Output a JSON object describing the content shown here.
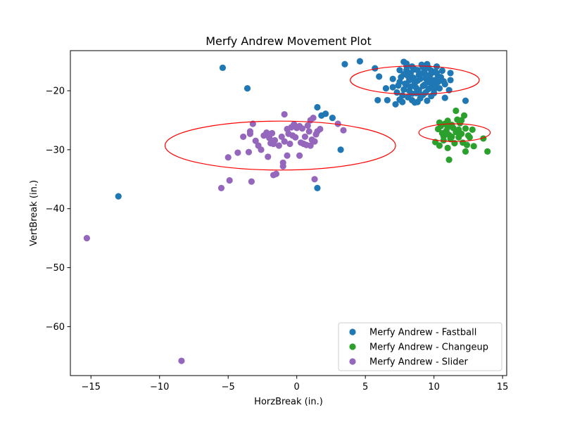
{
  "chart_data": {
    "type": "scatter",
    "title": "Merfy Andrew Movement Plot",
    "xlabel": "HorzBreak (in.)",
    "ylabel": "VertBreak (in.)",
    "xlim": [
      -16.5,
      15.3
    ],
    "ylim": [
      -68.3,
      -13.2
    ],
    "xticks": [
      -15,
      -10,
      -5,
      0,
      5,
      10,
      15
    ],
    "yticks": [
      -60,
      -50,
      -40,
      -30,
      -20
    ],
    "xtick_labels": [
      "−15",
      "−10",
      "−5",
      "0",
      "5",
      "10",
      "15"
    ],
    "ytick_labels": [
      "−60",
      "−50",
      "−40",
      "−30",
      "−20"
    ],
    "grid": false,
    "legend_position": "lower-right",
    "series": [
      {
        "name": "Merfy Andrew - Fastball",
        "color": "#1f77b4",
        "points": [
          [
            -5.4,
            -16.1
          ],
          [
            -3.6,
            -19.6
          ],
          [
            -13.0,
            -37.9
          ],
          [
            1.5,
            -22.8
          ],
          [
            1.8,
            -24.2
          ],
          [
            2.1,
            -23.9
          ],
          [
            2.6,
            -24.6
          ],
          [
            3.2,
            -30.0
          ],
          [
            1.5,
            -36.5
          ],
          [
            3.5,
            -15.5
          ],
          [
            4.6,
            -15.0
          ],
          [
            5.7,
            -16.2
          ],
          [
            6.0,
            -17.6
          ],
          [
            6.5,
            -19.6
          ],
          [
            5.9,
            -21.6
          ],
          [
            6.6,
            -21.6
          ],
          [
            7.0,
            -19.4
          ],
          [
            7.2,
            -22.3
          ],
          [
            7.3,
            -20.3
          ],
          [
            7.5,
            -21.5
          ],
          [
            7.7,
            -21.9
          ],
          [
            7.8,
            -17.2
          ],
          [
            7.5,
            -16.5
          ],
          [
            7.8,
            -15.1
          ],
          [
            8.0,
            -15.4
          ],
          [
            8.4,
            -21.6
          ],
          [
            8.6,
            -22.0
          ],
          [
            8.8,
            -21.9
          ],
          [
            9.2,
            -20.7
          ],
          [
            9.5,
            -21.7
          ],
          [
            10.0,
            -20.4
          ],
          [
            10.4,
            -19.6
          ],
          [
            10.8,
            -21.2
          ],
          [
            11.1,
            -19.9
          ],
          [
            11.2,
            -18.2
          ],
          [
            11.2,
            -17.0
          ],
          [
            12.3,
            -21.7
          ],
          [
            7.0,
            -18.0
          ],
          [
            7.5,
            -18.5
          ],
          [
            7.8,
            -19.8
          ],
          [
            8.0,
            -19.0
          ],
          [
            8.2,
            -18.2
          ],
          [
            8.3,
            -17.0
          ],
          [
            8.5,
            -17.8
          ],
          [
            8.6,
            -18.7
          ],
          [
            8.7,
            -19.5
          ],
          [
            8.8,
            -16.5
          ],
          [
            8.9,
            -17.3
          ],
          [
            9.0,
            -18.0
          ],
          [
            9.1,
            -15.6
          ],
          [
            9.2,
            -19.2
          ],
          [
            9.3,
            -16.7
          ],
          [
            9.4,
            -17.9
          ],
          [
            9.5,
            -18.6
          ],
          [
            9.6,
            -16.1
          ],
          [
            9.7,
            -17.4
          ],
          [
            9.8,
            -18.8
          ],
          [
            9.9,
            -16.9
          ],
          [
            10.0,
            -18.2
          ],
          [
            10.1,
            -19.1
          ],
          [
            10.2,
            -17.0
          ],
          [
            10.3,
            -18.5
          ],
          [
            10.5,
            -17.7
          ],
          [
            10.6,
            -16.6
          ],
          [
            10.8,
            -18.9
          ],
          [
            8.0,
            -16.5
          ],
          [
            8.2,
            -20.0
          ],
          [
            8.4,
            -15.9
          ],
          [
            8.6,
            -16.4
          ],
          [
            8.7,
            -20.4
          ],
          [
            8.9,
            -19.9
          ],
          [
            9.0,
            -20.6
          ],
          [
            9.2,
            -16.0
          ],
          [
            9.4,
            -20.3
          ],
          [
            9.6,
            -19.7
          ],
          [
            9.8,
            -16.6
          ],
          [
            10.0,
            -19.8
          ],
          [
            10.2,
            -15.9
          ],
          [
            10.4,
            -18.0
          ],
          [
            7.6,
            -17.7
          ],
          [
            7.9,
            -18.8
          ],
          [
            8.1,
            -17.5
          ],
          [
            8.3,
            -19.3
          ],
          [
            8.5,
            -16.2
          ],
          [
            8.8,
            -18.3
          ],
          [
            9.1,
            -17.1
          ],
          [
            9.3,
            -19.0
          ],
          [
            9.5,
            -17.4
          ],
          [
            9.7,
            -18.1
          ],
          [
            9.9,
            -19.4
          ],
          [
            10.1,
            -16.8
          ],
          [
            10.3,
            -17.6
          ],
          [
            10.7,
            -18.4
          ],
          [
            7.4,
            -19.1
          ],
          [
            7.7,
            -20.8
          ],
          [
            8.1,
            -21.1
          ],
          [
            8.4,
            -20.5
          ],
          [
            9.0,
            -21.3
          ],
          [
            9.5,
            -15.5
          ],
          [
            8.0,
            -15.8
          ],
          [
            9.8,
            -20.9
          ]
        ]
      },
      {
        "name": "Merfy Andrew - Changeup",
        "color": "#2ca02c",
        "points": [
          [
            10.4,
            -25.4
          ],
          [
            10.5,
            -26.0
          ],
          [
            10.8,
            -25.6
          ],
          [
            11.0,
            -25.1
          ],
          [
            11.3,
            -25.8
          ],
          [
            11.6,
            -23.4
          ],
          [
            11.7,
            -24.9
          ],
          [
            12.0,
            -25.0
          ],
          [
            12.2,
            -24.2
          ],
          [
            10.3,
            -26.5
          ],
          [
            10.6,
            -27.2
          ],
          [
            10.9,
            -26.8
          ],
          [
            11.1,
            -27.5
          ],
          [
            11.4,
            -26.3
          ],
          [
            11.6,
            -27.0
          ],
          [
            11.8,
            -26.6
          ],
          [
            12.0,
            -27.3
          ],
          [
            12.3,
            -26.4
          ],
          [
            12.5,
            -27.6
          ],
          [
            12.8,
            -26.6
          ],
          [
            10.1,
            -28.7
          ],
          [
            10.4,
            -29.3
          ],
          [
            10.7,
            -28.4
          ],
          [
            11.0,
            -29.7
          ],
          [
            11.2,
            -28.2
          ],
          [
            11.5,
            -28.9
          ],
          [
            11.8,
            -27.9
          ],
          [
            12.1,
            -28.8
          ],
          [
            12.4,
            -29.2
          ],
          [
            12.3,
            -30.3
          ],
          [
            12.9,
            -29.4
          ],
          [
            13.6,
            -28.1
          ],
          [
            13.9,
            -30.3
          ],
          [
            11.1,
            -31.7
          ],
          [
            10.9,
            -27.0
          ],
          [
            11.3,
            -27.8
          ],
          [
            11.9,
            -25.5
          ],
          [
            11.0,
            -26.2
          ],
          [
            12.6,
            -27.9
          ],
          [
            10.7,
            -27.7
          ]
        ]
      },
      {
        "name": "Merfy Andrew - Slider",
        "color": "#9467bd",
        "points": [
          [
            -15.3,
            -45.0
          ],
          [
            -8.4,
            -65.8
          ],
          [
            -5.5,
            -36.5
          ],
          [
            -4.9,
            -35.2
          ],
          [
            -3.3,
            -35.4
          ],
          [
            -5.0,
            -31.3
          ],
          [
            -4.3,
            -30.5
          ],
          [
            -3.5,
            -30.4
          ],
          [
            -2.1,
            -31.2
          ],
          [
            -1.5,
            -34.1
          ],
          [
            -1.7,
            -34.3
          ],
          [
            -1.0,
            -32.2
          ],
          [
            -1.0,
            -32.8
          ],
          [
            -0.7,
            -31.0
          ],
          [
            0.2,
            -31.0
          ],
          [
            1.3,
            -35.0
          ],
          [
            -3.9,
            -27.8
          ],
          [
            -3.4,
            -27.3
          ],
          [
            -3.4,
            -26.9
          ],
          [
            -3.2,
            -25.6
          ],
          [
            -3.0,
            -28.5
          ],
          [
            -2.8,
            -29.3
          ],
          [
            -2.6,
            -30.0
          ],
          [
            -2.4,
            -27.6
          ],
          [
            -2.2,
            -27.1
          ],
          [
            -2.0,
            -28.0
          ],
          [
            -1.8,
            -27.2
          ],
          [
            -1.7,
            -29.0
          ],
          [
            -1.6,
            -28.4
          ],
          [
            -1.3,
            -29.3
          ],
          [
            -1.1,
            -27.8
          ],
          [
            -0.9,
            -28.6
          ],
          [
            -0.9,
            -24.0
          ],
          [
            -0.7,
            -26.5
          ],
          [
            -0.6,
            -27.3
          ],
          [
            -0.5,
            -29.0
          ],
          [
            -0.4,
            -26.2
          ],
          [
            -0.2,
            -25.7
          ],
          [
            -0.1,
            -27.9
          ],
          [
            0.0,
            -26.3
          ],
          [
            0.2,
            -26.0
          ],
          [
            0.3,
            -28.8
          ],
          [
            0.4,
            -26.4
          ],
          [
            0.5,
            -29.0
          ],
          [
            0.6,
            -27.8
          ],
          [
            0.8,
            -25.9
          ],
          [
            0.9,
            -26.9
          ],
          [
            1.0,
            -29.3
          ],
          [
            1.0,
            -25.0
          ],
          [
            1.1,
            -28.3
          ],
          [
            1.2,
            -24.6
          ],
          [
            1.3,
            -28.6
          ],
          [
            1.4,
            -27.4
          ],
          [
            1.5,
            -26.9
          ],
          [
            1.7,
            -26.5
          ],
          [
            3.0,
            -25.6
          ],
          [
            3.4,
            -26.7
          ],
          [
            -1.9,
            -28.9
          ],
          [
            -0.3,
            -27.6
          ],
          [
            0.7,
            -29.2
          ]
        ]
      }
    ],
    "ellipses": [
      {
        "series": "Merfy Andrew - Fastball",
        "center": [
          8.6,
          -18.2
        ],
        "width": 9.4,
        "height": 4.8,
        "color": "#ff0000"
      },
      {
        "series": "Merfy Andrew - Changeup",
        "center": [
          11.5,
          -27.1
        ],
        "width": 5.2,
        "height": 3.0,
        "color": "#ff0000"
      },
      {
        "series": "Merfy Andrew - Slider",
        "center": [
          -1.2,
          -29.3
        ],
        "width": 16.8,
        "height": 8.3,
        "color": "#ff0000"
      }
    ]
  }
}
